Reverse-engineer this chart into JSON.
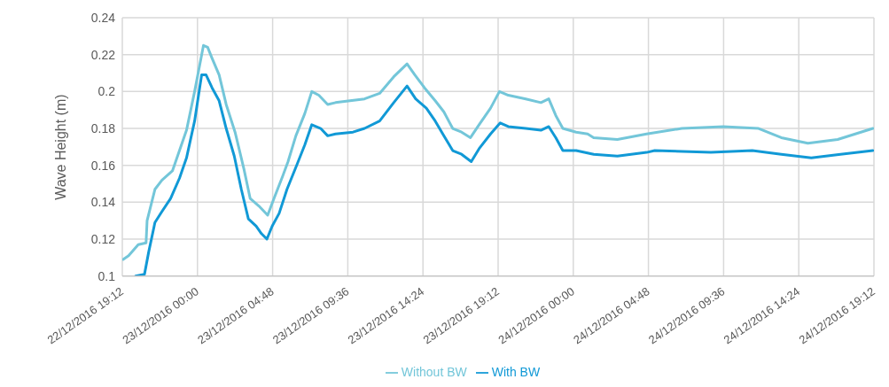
{
  "chart_data": {
    "type": "line",
    "ylabel": "Wave Height (m)",
    "xlim": [
      "2016-12-22T19:12",
      "2016-12-24T19:12"
    ],
    "xticks": [
      {
        "value": "2016-12-22T19:12",
        "label": "22/12/2016 19:12"
      },
      {
        "value": "2016-12-23T00:00",
        "label": "23/12/2016 00:00"
      },
      {
        "value": "2016-12-23T04:48",
        "label": "23/12/2016 04:48"
      },
      {
        "value": "2016-12-23T09:36",
        "label": "23/12/2016 09:36"
      },
      {
        "value": "2016-12-23T14:24",
        "label": "23/12/2016 14:24"
      },
      {
        "value": "2016-12-23T19:12",
        "label": "23/12/2016 19:12"
      },
      {
        "value": "2016-12-24T00:00",
        "label": "24/12/2016 00:00"
      },
      {
        "value": "2016-12-24T04:48",
        "label": "24/12/2016 04:48"
      },
      {
        "value": "2016-12-24T09:36",
        "label": "24/12/2016 09:36"
      },
      {
        "value": "2016-12-24T14:24",
        "label": "24/12/2016 14:24"
      },
      {
        "value": "2016-12-24T19:12",
        "label": "24/12/2016 19:12"
      }
    ],
    "ylim": [
      0.1,
      0.24
    ],
    "yticks": [
      0.1,
      0.12,
      0.14,
      0.16,
      0.18,
      0.2,
      0.22,
      0.24
    ],
    "grid": true,
    "legend": "bottom",
    "marker": "none",
    "line_style": "solid",
    "series": [
      {
        "name": "Without BW",
        "color": "#73c6d9",
        "x": [
          "2016-12-22T19:15",
          "2016-12-22T19:36",
          "2016-12-22T20:13",
          "2016-12-22T20:43",
          "2016-12-22T20:47",
          "2016-12-22T21:17",
          "2016-12-22T21:44",
          "2016-12-22T22:24",
          "2016-12-22T22:51",
          "2016-12-22T23:18",
          "2016-12-22T23:49",
          "2016-12-23T00:23",
          "2016-12-23T00:39",
          "2016-12-23T00:56",
          "2016-12-23T01:23",
          "2016-12-23T01:50",
          "2016-12-23T02:24",
          "2016-12-23T02:58",
          "2016-12-23T03:22",
          "2016-12-23T03:55",
          "2016-12-23T04:29",
          "2016-12-23T04:53",
          "2016-12-23T05:26",
          "2016-12-23T05:47",
          "2016-12-23T06:17",
          "2016-12-23T06:51",
          "2016-12-23T07:18",
          "2016-12-23T07:45",
          "2016-12-23T08:19",
          "2016-12-23T08:49",
          "2016-12-23T10:40",
          "2016-12-23T11:38",
          "2016-12-23T12:32",
          "2016-12-23T13:23",
          "2016-12-23T13:53",
          "2016-12-23T14:30",
          "2016-12-23T15:11",
          "2016-12-23T15:44",
          "2016-12-23T16:18",
          "2016-12-23T16:52",
          "2016-12-23T17:26",
          "2016-12-23T17:59",
          "2016-12-23T18:43",
          "2016-12-23T19:17",
          "2016-12-23T19:51",
          "2016-12-23T20:58",
          "2016-12-23T21:56",
          "2016-12-23T22:26",
          "2016-12-23T22:53",
          "2016-12-23T23:20",
          "2016-12-24T00:11",
          "2016-12-24T00:55",
          "2016-12-24T01:18",
          "2016-12-24T02:49",
          "2016-12-24T04:41",
          "2016-12-24T06:56",
          "2016-12-24T09:35",
          "2016-12-24T11:50",
          "2016-12-24T13:17",
          "2016-12-24T14:59",
          "2016-12-24T16:53",
          "2016-12-24T19:08"
        ],
        "values": [
          0.109,
          0.111,
          0.117,
          0.118,
          0.13,
          0.147,
          0.152,
          0.157,
          0.168,
          0.179,
          0.2,
          0.225,
          0.224,
          0.218,
          0.209,
          0.193,
          0.178,
          0.158,
          0.142,
          0.138,
          0.133,
          0.142,
          0.154,
          0.162,
          0.176,
          0.188,
          0.2,
          0.198,
          0.193,
          0.194,
          0.196,
          0.199,
          0.208,
          0.215,
          0.209,
          0.202,
          0.195,
          0.189,
          0.18,
          0.178,
          0.175,
          0.182,
          0.191,
          0.2,
          0.198,
          0.196,
          0.194,
          0.196,
          0.187,
          0.18,
          0.178,
          0.177,
          0.175,
          0.174,
          0.177,
          0.18,
          0.181,
          0.18,
          0.175,
          0.172,
          0.174,
          0.18
        ]
      },
      {
        "name": "With BW",
        "color": "#1199d6",
        "x": [
          "2016-12-22T20:03",
          "2016-12-22T20:37",
          "2016-12-22T20:53",
          "2016-12-22T21:17",
          "2016-12-22T21:44",
          "2016-12-22T22:17",
          "2016-12-22T22:51",
          "2016-12-22T23:18",
          "2016-12-22T23:49",
          "2016-12-23T00:16",
          "2016-12-23T00:33",
          "2016-12-23T00:56",
          "2016-12-23T01:23",
          "2016-12-23T01:50",
          "2016-12-23T02:21",
          "2016-12-23T02:48",
          "2016-12-23T03:15",
          "2016-12-23T03:45",
          "2016-12-23T04:05",
          "2016-12-23T04:26",
          "2016-12-23T04:46",
          "2016-12-23T05:13",
          "2016-12-23T05:43",
          "2016-12-23T06:20",
          "2016-12-23T06:51",
          "2016-12-23T07:18",
          "2016-12-23T07:52",
          "2016-12-23T08:19",
          "2016-12-23T08:49",
          "2016-12-23T09:56",
          "2016-12-23T10:40",
          "2016-12-23T11:38",
          "2016-12-23T12:32",
          "2016-12-23T13:23",
          "2016-12-23T13:56",
          "2016-12-23T14:37",
          "2016-12-23T15:11",
          "2016-12-23T15:44",
          "2016-12-23T16:18",
          "2016-12-23T16:52",
          "2016-12-23T17:29",
          "2016-12-23T17:59",
          "2016-12-23T18:43",
          "2016-12-23T19:20",
          "2016-12-23T19:51",
          "2016-12-23T20:58",
          "2016-12-23T21:56",
          "2016-12-23T22:26",
          "2016-12-23T22:53",
          "2016-12-23T23:20",
          "2016-12-24T00:11",
          "2016-12-24T01:18",
          "2016-12-24T02:49",
          "2016-12-24T04:41",
          "2016-12-24T05:12",
          "2016-12-24T08:47",
          "2016-12-24T11:26",
          "2016-12-24T13:17",
          "2016-12-24T15:12",
          "2016-12-24T17:04",
          "2016-12-24T19:08"
        ],
        "values": [
          0.1,
          0.101,
          0.113,
          0.129,
          0.135,
          0.142,
          0.153,
          0.164,
          0.184,
          0.209,
          0.209,
          0.202,
          0.195,
          0.18,
          0.165,
          0.147,
          0.131,
          0.127,
          0.123,
          0.12,
          0.127,
          0.134,
          0.147,
          0.16,
          0.171,
          0.182,
          0.18,
          0.176,
          0.177,
          0.178,
          0.18,
          0.184,
          0.194,
          0.203,
          0.196,
          0.191,
          0.184,
          0.176,
          0.168,
          0.166,
          0.162,
          0.169,
          0.177,
          0.183,
          0.181,
          0.18,
          0.179,
          0.181,
          0.175,
          0.168,
          0.168,
          0.166,
          0.165,
          0.167,
          0.168,
          0.167,
          0.168,
          0.166,
          0.164,
          0.166,
          0.168
        ]
      }
    ]
  }
}
